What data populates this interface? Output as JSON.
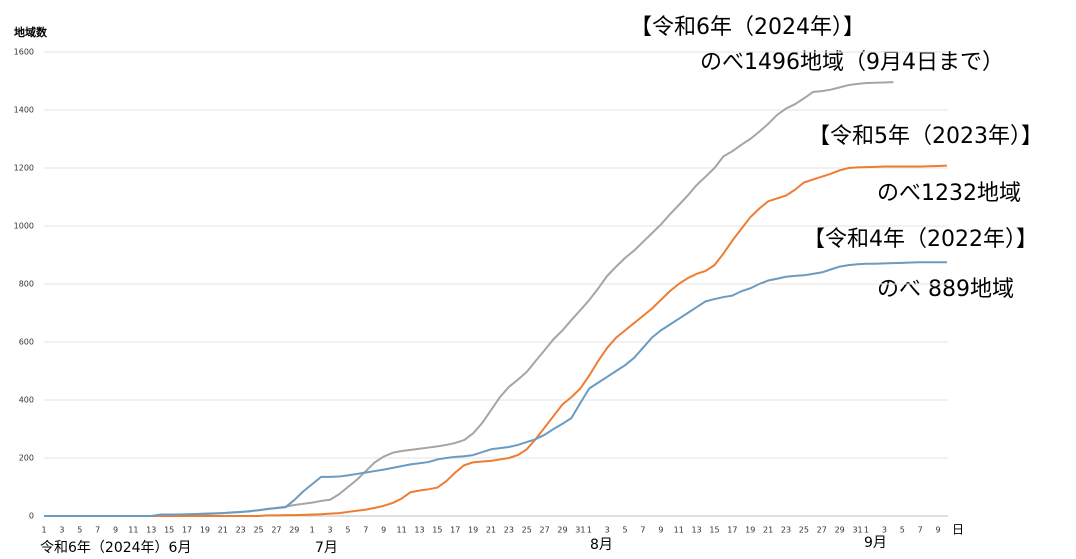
{
  "chart_data": {
    "type": "line",
    "y_label": "地域数",
    "x_unit": "日",
    "month_labels": [
      "令和6年（2024年）6月",
      "7月",
      "8月",
      "9月"
    ],
    "categories": [
      "1",
      null,
      "3",
      null,
      "5",
      null,
      "7",
      null,
      "9",
      null,
      "11",
      null,
      "13",
      null,
      "15",
      null,
      "17",
      null,
      "19",
      null,
      "21",
      null,
      "23",
      null,
      "25",
      null,
      "27",
      null,
      "29",
      null,
      "1",
      null,
      "3",
      null,
      "5",
      null,
      "7",
      null,
      "9",
      null,
      "11",
      null,
      "13",
      null,
      "15",
      null,
      "17",
      null,
      "19",
      null,
      "21",
      null,
      "23",
      null,
      "25",
      null,
      "27",
      null,
      "29",
      null,
      "31",
      "1",
      null,
      "3",
      null,
      "5",
      null,
      "7",
      null,
      "9",
      null,
      "11",
      null,
      "13",
      null,
      "15",
      null,
      "17",
      null,
      "19",
      null,
      "21",
      null,
      "23",
      null,
      "25",
      null,
      "27",
      null,
      "29",
      null,
      "31",
      "1",
      null,
      "3",
      null,
      "5",
      null,
      "7",
      null,
      "9",
      null
    ],
    "ylim": [
      0,
      1600
    ],
    "yticks": [
      0,
      200,
      400,
      600,
      800,
      1000,
      1200,
      1400,
      1600
    ],
    "grid": true,
    "series": [
      {
        "name": "【令和6年（2024年）】",
        "annotation": "のべ1496地域（9月4日まで）",
        "color": "#a5a5a5",
        "values": [
          0,
          0,
          0,
          0,
          0,
          0,
          0,
          0,
          0,
          0,
          0,
          0,
          0,
          2,
          2,
          3,
          3,
          4,
          6,
          8,
          10,
          12,
          14,
          17,
          20,
          24,
          28,
          32,
          38,
          42,
          46,
          52,
          56,
          75,
          100,
          125,
          155,
          185,
          205,
          218,
          224,
          228,
          232,
          236,
          240,
          245,
          252,
          262,
          285,
          320,
          365,
          410,
          445,
          470,
          497,
          535,
          572,
          610,
          640,
          676,
          710,
          745,
          785,
          828,
          860,
          890,
          915,
          945,
          975,
          1005,
          1040,
          1072,
          1105,
          1141,
          1170,
          1200,
          1240,
          1258,
          1280,
          1300,
          1325,
          1352,
          1383,
          1405,
          1420,
          1440,
          1462,
          1465,
          1470,
          1478,
          1486,
          1490,
          1493,
          1494,
          1495,
          1496,
          null,
          null,
          null,
          null,
          null,
          null
        ]
      },
      {
        "name": "【令和5年（2023年）】",
        "annotation": "のべ1232地域",
        "color": "#ed7d31",
        "values": [
          0,
          0,
          0,
          0,
          0,
          0,
          0,
          0,
          0,
          0,
          0,
          0,
          0,
          0,
          0,
          0,
          0,
          0,
          0,
          0,
          0,
          0,
          0,
          0,
          0,
          2,
          2,
          3,
          3,
          4,
          5,
          6,
          8,
          10,
          14,
          18,
          22,
          28,
          35,
          45,
          60,
          82,
          88,
          92,
          98,
          120,
          150,
          175,
          185,
          188,
          190,
          195,
          200,
          210,
          230,
          265,
          305,
          345,
          385,
          410,
          440,
          485,
          535,
          580,
          615,
          640,
          665,
          690,
          715,
          745,
          775,
          800,
          820,
          835,
          845,
          865,
          905,
          950,
          990,
          1030,
          1060,
          1085,
          1095,
          1105,
          1125,
          1150,
          1160,
          1170,
          1180,
          1192,
          1200,
          1202,
          1203,
          1204,
          1205,
          1205,
          1205,
          1205,
          1205,
          1206,
          1207,
          1208
        ]
      },
      {
        "name": "【令和4年（2022年）】",
        "annotation": "のべ 889地域",
        "color": "#6a9bc3",
        "values": [
          0,
          0,
          0,
          0,
          0,
          0,
          0,
          0,
          0,
          0,
          0,
          0,
          0,
          5,
          5,
          5,
          6,
          7,
          8,
          9,
          10,
          12,
          14,
          16,
          20,
          24,
          27,
          30,
          55,
          85,
          110,
          135,
          135,
          136,
          140,
          145,
          150,
          155,
          160,
          166,
          172,
          178,
          182,
          186,
          195,
          200,
          204,
          206,
          210,
          220,
          230,
          234,
          238,
          245,
          255,
          265,
          280,
          300,
          318,
          338,
          390,
          440,
          460,
          480,
          500,
          520,
          545,
          580,
          615,
          640,
          660,
          680,
          700,
          720,
          740,
          748,
          755,
          760,
          775,
          785,
          800,
          812,
          818,
          825,
          828,
          830,
          835,
          840,
          850,
          860,
          865,
          868,
          870,
          870,
          871,
          872,
          873,
          874,
          875,
          875,
          875,
          875
        ]
      }
    ]
  }
}
